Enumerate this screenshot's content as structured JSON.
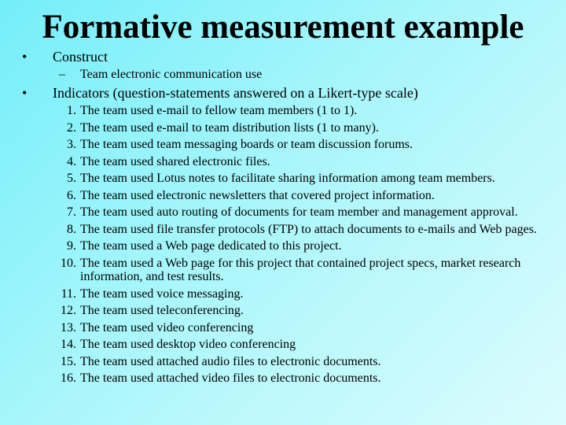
{
  "title": "Formative measurement example",
  "bullets": [
    {
      "text": "Construct",
      "sub": "Team electronic communication use"
    },
    {
      "text": "Indicators (question-statements answered on a Likert-type scale)"
    }
  ],
  "items": [
    {
      "number": "1.",
      "text": "The team used e-mail to fellow team members (1 to 1)."
    },
    {
      "number": "2.",
      "text": "The team used e-mail to team distribution lists (1 to many)."
    },
    {
      "number": "3.",
      "text": "The team used team messaging boards or team discussion forums."
    },
    {
      "number": "4.",
      "text": "The team used shared electronic files."
    },
    {
      "number": "5.",
      "text": "The team used Lotus notes to facilitate sharing information among team members."
    },
    {
      "number": "6.",
      "text": "The team used electronic newsletters that covered project information."
    },
    {
      "number": "7.",
      "text": "The team used auto routing of documents for team member and management approval."
    },
    {
      "number": "8.",
      "text": "The team used file transfer protocols (FTP) to attach documents to e-mails and Web pages."
    },
    {
      "number": "9.",
      "text": "The team used a Web page dedicated to this project."
    },
    {
      "number": "10.",
      "text": "The team used a Web page for this project that contained project specs, market research information, and test results."
    },
    {
      "number": "11.",
      "text": "The team used voice messaging."
    },
    {
      "number": "12.",
      "text": "The team used teleconferencing."
    },
    {
      "number": "13.",
      "text": "The team used video conferencing"
    },
    {
      "number": "14.",
      "text": "The team used desktop video conferencing"
    },
    {
      "number": "15.",
      "text": "The team used attached audio files to electronic documents."
    },
    {
      "number": "16.",
      "text": "The team used attached video files to electronic documents."
    }
  ]
}
